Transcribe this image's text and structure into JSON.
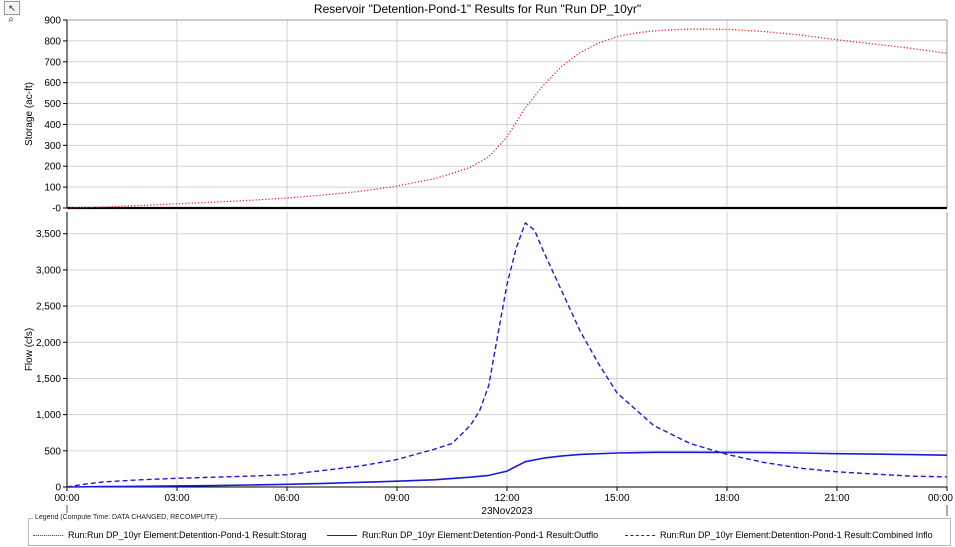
{
  "toolbar": {
    "pointer_icon": "cursor-arrow-icon",
    "zoom_icon": "magnifier-icon"
  },
  "title": "Reservoir \"Detention-Pond-1\" Results for Run \"Run DP_10yr\"",
  "chart_data": [
    {
      "type": "line",
      "panel": "top",
      "ylabel": "Storage (ac-ft)",
      "ylim": [
        0,
        900
      ],
      "yticks": [
        0,
        100,
        200,
        300,
        400,
        500,
        600,
        700,
        800,
        900
      ],
      "ytick_labels": [
        "-0",
        "100",
        "200",
        "300",
        "400",
        "500",
        "600",
        "700",
        "800",
        "900"
      ],
      "xlim_hours": [
        0,
        24
      ],
      "grid": true,
      "series": [
        {
          "name": "Run:Run DP_10yr Element:Detention-Pond-1 Result:Storage",
          "color": "#e8232a",
          "style": "dotted",
          "x": [
            0,
            1,
            2,
            3,
            4,
            5,
            6,
            7,
            8,
            9,
            10,
            10.5,
            11,
            11.5,
            12,
            12.5,
            13,
            13.5,
            14,
            14.5,
            15,
            15.5,
            16,
            16.5,
            17,
            17.5,
            18,
            19,
            20,
            21,
            22,
            23,
            24
          ],
          "y": [
            0,
            5,
            12,
            20,
            28,
            37,
            48,
            62,
            80,
            105,
            140,
            165,
            195,
            245,
            340,
            480,
            590,
            680,
            745,
            790,
            820,
            838,
            848,
            853,
            856,
            856,
            855,
            845,
            828,
            805,
            785,
            765,
            740
          ]
        }
      ]
    },
    {
      "type": "line",
      "panel": "bottom",
      "ylabel": "Flow (cfs)",
      "ylim": [
        0,
        3800
      ],
      "yticks": [
        0,
        500,
        1000,
        1500,
        2000,
        2500,
        3000,
        3500
      ],
      "ytick_labels": [
        "0",
        "500",
        "1,000",
        "1,500",
        "2,000",
        "2,500",
        "3,000",
        "3,500"
      ],
      "xlim_hours": [
        0,
        24
      ],
      "xticks_hours": [
        0,
        3,
        6,
        9,
        12,
        15,
        18,
        21,
        24
      ],
      "xtick_labels": [
        "00:00",
        "03:00",
        "06:00",
        "09:00",
        "12:00",
        "15:00",
        "18:00",
        "21:00",
        "00:00"
      ],
      "date_label": "23Nov2023",
      "grid": true,
      "series": [
        {
          "name": "Run:Run DP_10yr Element:Detention-Pond-1 Result:Outflow",
          "color": "#1b1bd4",
          "style": "solid",
          "x": [
            0,
            1,
            2,
            3,
            4,
            5,
            6,
            7,
            8,
            9,
            10,
            11,
            11.5,
            12,
            12.5,
            13,
            13.5,
            14,
            15,
            16,
            17,
            18,
            19,
            20,
            21,
            22,
            23,
            24
          ],
          "y": [
            0,
            5,
            10,
            15,
            20,
            28,
            38,
            50,
            65,
            80,
            100,
            135,
            160,
            220,
            350,
            400,
            430,
            450,
            470,
            480,
            480,
            478,
            475,
            470,
            460,
            455,
            448,
            440
          ]
        },
        {
          "name": "Run:Run DP_10yr Element:Detention-Pond-1 Result:Combined Inflow",
          "color": "#1b1bd4",
          "style": "dashed",
          "x": [
            0,
            0.5,
            1,
            2,
            3,
            4,
            5,
            6,
            7,
            8,
            9,
            10,
            10.5,
            11,
            11.25,
            11.5,
            11.75,
            12,
            12.25,
            12.5,
            12.75,
            13,
            13.5,
            14,
            14.5,
            15,
            16,
            17,
            18,
            19,
            20,
            21,
            22,
            23,
            24
          ],
          "y": [
            0,
            40,
            70,
            100,
            120,
            135,
            150,
            170,
            230,
            290,
            380,
            520,
            600,
            850,
            1050,
            1400,
            2100,
            2800,
            3300,
            3650,
            3550,
            3250,
            2700,
            2150,
            1700,
            1300,
            850,
            600,
            450,
            340,
            260,
            210,
            180,
            150,
            140
          ]
        }
      ]
    }
  ],
  "legend": {
    "heading": "Legend (Compute Time: DATA CHANGED, RECOMPUTE)",
    "items": [
      {
        "label": "Run:Run DP_10yr Element:Detention-Pond-1 Result:Storag"
      },
      {
        "label": "Run:Run DP_10yr Element:Detention-Pond-1 Result:Outflo"
      },
      {
        "label": "Run:Run DP_10yr Element:Detention-Pond-1 Result:Combined Inflo"
      }
    ]
  }
}
